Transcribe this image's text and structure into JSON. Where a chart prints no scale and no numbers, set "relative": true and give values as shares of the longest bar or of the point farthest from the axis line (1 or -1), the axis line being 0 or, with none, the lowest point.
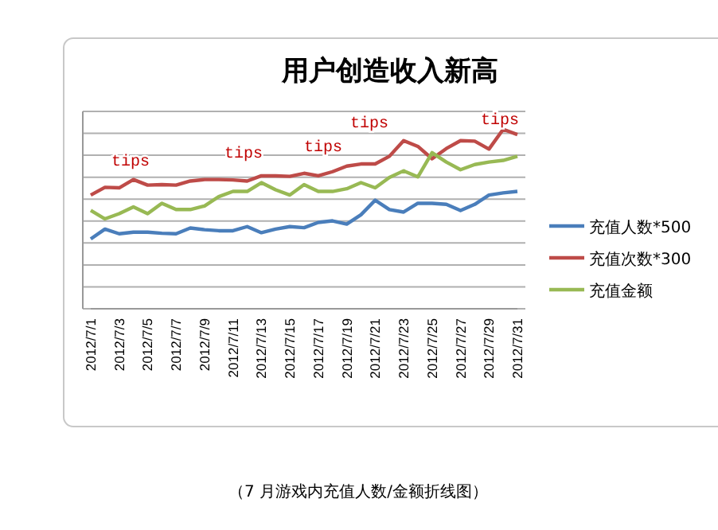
{
  "chart_data": {
    "type": "line",
    "title": "用户创造收入新高",
    "relative": true,
    "grid": "y",
    "legend": "right",
    "categories": [
      "2012/7/1",
      null,
      "2012/7/3",
      null,
      "2012/7/5",
      null,
      "2012/7/7",
      null,
      "2012/7/9",
      null,
      "2012/7/11",
      null,
      "2012/7/13",
      null,
      "2012/7/15",
      null,
      "2012/7/17",
      null,
      "2012/7/19",
      null,
      "2012/7/21",
      null,
      "2012/7/23",
      null,
      "2012/7/25",
      null,
      "2012/7/27",
      null,
      "2012/7/29",
      null,
      "2012/7/31"
    ],
    "series": [
      {
        "name": "充值人数*500",
        "color": "#4a7ebb",
        "values": [
          0.389,
          0.444,
          0.418,
          0.427,
          0.427,
          0.421,
          0.418,
          0.45,
          0.441,
          0.435,
          0.435,
          0.458,
          0.424,
          0.444,
          0.458,
          0.452,
          0.481,
          0.49,
          0.472,
          0.524,
          0.605,
          0.553,
          0.539,
          0.588,
          0.588,
          0.582,
          0.548,
          0.582,
          0.634,
          0.646,
          0.654
        ]
      },
      {
        "name": "充值次数*300",
        "color": "#be4b48",
        "values": [
          0.634,
          0.677,
          0.674,
          0.72,
          0.689,
          0.692,
          0.689,
          0.712,
          0.72,
          0.72,
          0.718,
          0.712,
          0.741,
          0.741,
          0.738,
          0.755,
          0.741,
          0.764,
          0.795,
          0.807,
          0.807,
          0.85,
          0.937,
          0.905,
          0.836,
          0.893,
          0.937,
          0.934,
          0.89,
          1,
          0.971
        ]
      },
      {
        "name": "充值金额",
        "color": "#98b954",
        "values": [
          0.548,
          0.501,
          0.53,
          0.568,
          0.53,
          0.588,
          0.553,
          0.553,
          0.573,
          0.625,
          0.654,
          0.654,
          0.703,
          0.663,
          0.634,
          0.692,
          0.654,
          0.654,
          0.669,
          0.703,
          0.674,
          0.732,
          0.769,
          0.735,
          0.87,
          0.818,
          0.775,
          0.804,
          0.818,
          0.827,
          0.85
        ]
      }
    ],
    "annotations": [
      "tips",
      "tips",
      "tips",
      "tips",
      "tips",
      "（7 月游戏内充值人数/金额折线图）"
    ]
  }
}
